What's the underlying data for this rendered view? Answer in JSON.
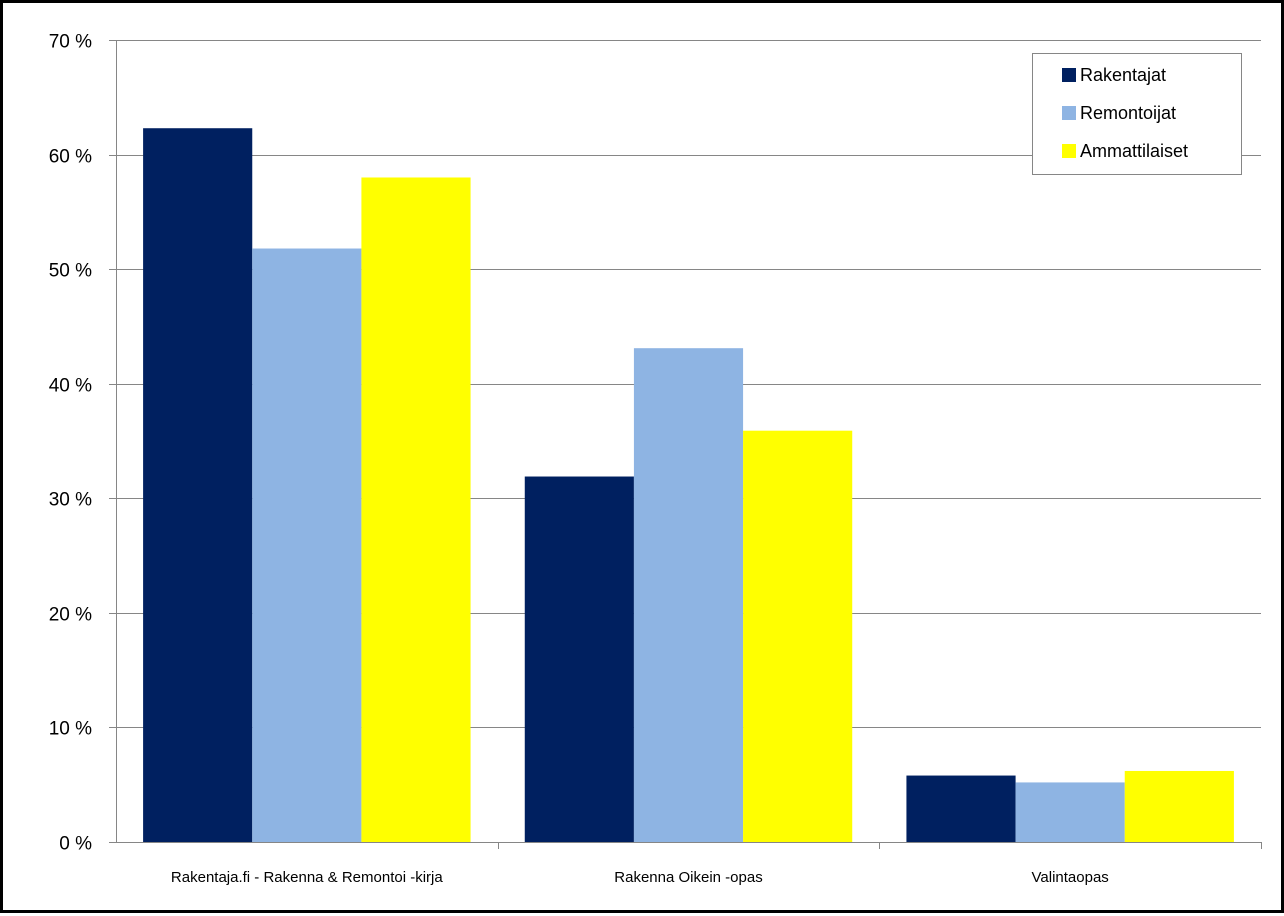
{
  "chart_data": {
    "type": "bar",
    "title": "",
    "xlabel": "",
    "ylabel": "",
    "categories": [
      "Rakentaja.fi - Rakenna & Remontoi -kirja",
      "Rakenna Oikein -opas",
      "Valintaopas"
    ],
    "series": [
      {
        "name": "Rakentajat",
        "color": "#002060",
        "values": [
          62.3,
          31.9,
          5.8
        ]
      },
      {
        "name": "Remontoijat",
        "color": "#8EB4E3",
        "values": [
          51.8,
          43.1,
          5.2
        ]
      },
      {
        "name": "Ammattilaiset",
        "color": "#FFFF00",
        "values": [
          58.0,
          35.9,
          6.2
        ]
      }
    ],
    "ylim": [
      0,
      70
    ],
    "y_ticks": [
      0,
      10,
      20,
      30,
      40,
      50,
      60,
      70
    ],
    "y_tick_labels": [
      "0 %",
      "10 %",
      "20 %",
      "30 %",
      "40 %",
      "50 %",
      "60 %",
      "70 %"
    ],
    "grid": true,
    "legend_position": "top-right"
  }
}
